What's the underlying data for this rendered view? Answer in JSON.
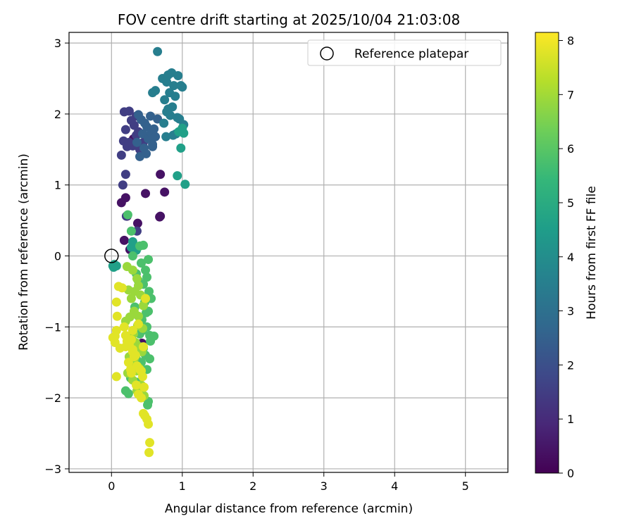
{
  "chart_data": {
    "type": "scatter",
    "title": "FOV centre drift starting at 2025/10/04 21:03:08",
    "xlabel": "Angular distance from reference (arcmin)",
    "ylabel": "Rotation from reference (arcmin)",
    "xlim": [
      -0.6,
      5.6
    ],
    "ylim": [
      -3.05,
      3.15
    ],
    "xticks": [
      0,
      1,
      2,
      3,
      4,
      5
    ],
    "yticks": [
      -3,
      -2,
      -1,
      0,
      1,
      2,
      3
    ],
    "grid": true,
    "legend": {
      "position": "top-right",
      "entries": [
        "Reference platepar"
      ]
    },
    "reference_point": {
      "label": "Reference platepar",
      "x": 0,
      "y": 0
    },
    "colorbar": {
      "label": "Hours from first FF file",
      "min": 0,
      "max": 8.15,
      "ticks": [
        0,
        1,
        2,
        3,
        4,
        5,
        6,
        7,
        8
      ],
      "colormap": "viridis",
      "stops": [
        "#440154",
        "#482878",
        "#3e4989",
        "#31688e",
        "#26828e",
        "#1f9e89",
        "#35b779",
        "#6ece58",
        "#b5de2b",
        "#fde725"
      ]
    },
    "series": [
      {
        "hour_range": [
          0,
          0.8
        ],
        "color_value": 0.4,
        "x": [
          0.31,
          0.69,
          0.69,
          0.75,
          0.68,
          0.22,
          0.26,
          0.18,
          0.37,
          0.2,
          0.14,
          0.3,
          0.43,
          0.48
        ],
        "y": [
          1.65,
          1.15,
          0.56,
          0.9,
          0.55,
          0.56,
          0.09,
          0.22,
          0.46,
          0.82,
          0.75,
          1.6,
          -1.23,
          0.88
        ]
      },
      {
        "hour_range": [
          0.8,
          2.0
        ],
        "color_value": 1.5,
        "x": [
          0.18,
          0.25,
          0.35,
          0.28,
          0.32,
          0.2,
          0.17,
          0.14,
          0.22,
          0.16,
          0.4,
          0.45,
          0.52,
          0.3,
          0.35,
          0.38,
          0.42,
          0.25,
          0.2,
          0.21,
          0.36
        ],
        "y": [
          2.03,
          2.04,
          1.97,
          1.91,
          1.84,
          1.78,
          1.62,
          1.42,
          1.54,
          1.0,
          1.5,
          1.6,
          1.68,
          1.55,
          1.7,
          1.75,
          1.45,
          1.6,
          1.15,
          0.56,
          0.35
        ]
      },
      {
        "hour_range": [
          2.0,
          3.0
        ],
        "color_value": 2.5,
        "x": [
          0.38,
          0.42,
          0.47,
          0.5,
          0.55,
          0.44,
          0.36,
          0.4,
          0.46,
          0.52,
          0.56,
          0.6,
          0.62,
          0.58,
          0.65,
          0.58,
          0.49
        ],
        "y": [
          1.99,
          1.92,
          1.87,
          1.82,
          1.97,
          1.72,
          1.6,
          1.4,
          1.52,
          1.65,
          1.74,
          1.79,
          1.68,
          1.57,
          1.93,
          1.54,
          1.44
        ]
      },
      {
        "hour_range": [
          3.0,
          4.0
        ],
        "color_value": 3.5,
        "x": [
          0.65,
          0.72,
          0.8,
          0.85,
          0.88,
          0.94,
          0.78,
          0.82,
          0.75,
          0.86,
          0.9,
          0.98,
          1.0,
          0.62,
          0.58,
          0.78,
          0.83,
          0.74,
          0.91,
          0.96,
          1.02,
          0.77,
          0.87,
          0.93,
          0.8
        ],
        "y": [
          2.88,
          2.5,
          2.55,
          2.58,
          2.4,
          2.54,
          2.45,
          2.3,
          2.2,
          2.1,
          2.25,
          2.4,
          2.38,
          2.33,
          2.3,
          2.03,
          1.98,
          1.87,
          1.72,
          1.93,
          1.85,
          1.68,
          1.7,
          1.95,
          2.07
        ]
      },
      {
        "hour_range": [
          4.0,
          5.3
        ],
        "color_value": 4.6,
        "x": [
          0.02,
          0.04,
          0.07,
          0.03,
          0.05,
          0.98,
          1.02,
          1.04,
          0.95,
          1.0,
          0.93,
          0.28,
          0.3,
          0.35
        ],
        "y": [
          -0.14,
          -0.12,
          -0.14,
          -0.16,
          -0.13,
          1.52,
          1.73,
          1.01,
          1.75,
          1.8,
          1.13,
          0.12,
          0.2,
          0.08
        ]
      },
      {
        "hour_range": [
          5.3,
          6.3
        ],
        "color_value": 5.8,
        "x": [
          0.23,
          0.28,
          0.4,
          0.45,
          0.52,
          0.3,
          0.42,
          0.48,
          0.35,
          0.5,
          0.45,
          0.38,
          0.53,
          0.56,
          0.47,
          0.33,
          0.52,
          0.49,
          0.43,
          0.5,
          0.44,
          0.4,
          0.54,
          0.55,
          0.45,
          0.6,
          0.48,
          0.35,
          0.42,
          0.5,
          0.27,
          0.36,
          0.45,
          0.2,
          0.24,
          0.52,
          0.51,
          0.54
        ],
        "y": [
          0.58,
          0.35,
          0.14,
          0.15,
          -0.05,
          0.0,
          -0.1,
          -0.2,
          -0.25,
          -0.3,
          -0.4,
          -0.35,
          -0.5,
          -0.6,
          -0.65,
          -0.72,
          -0.78,
          -0.8,
          -0.9,
          -1.0,
          -1.05,
          -1.1,
          -1.12,
          -1.2,
          -1.3,
          -1.13,
          -1.4,
          -1.45,
          -1.5,
          -1.6,
          -1.72,
          -1.78,
          -1.85,
          -1.9,
          -1.94,
          -2.05,
          -2.1,
          -1.45
        ]
      },
      {
        "hour_range": [
          6.3,
          7.3
        ],
        "color_value": 6.9,
        "x": [
          0.22,
          0.3,
          0.36,
          0.38,
          0.33,
          0.41,
          0.24,
          0.28,
          0.45,
          0.32,
          0.26,
          0.2,
          0.37,
          0.44,
          0.31,
          0.27,
          0.34,
          0.4,
          0.43,
          0.25,
          0.29,
          0.39,
          0.35,
          0.23,
          0.3,
          0.42,
          0.36,
          0.46,
          0.38,
          0.32
        ],
        "y": [
          -0.15,
          -0.2,
          -0.32,
          -0.42,
          -0.5,
          -0.55,
          -0.48,
          -0.6,
          -0.7,
          -0.78,
          -0.86,
          -0.92,
          -0.98,
          -1.02,
          -1.1,
          -1.18,
          -1.22,
          -1.28,
          -1.35,
          -1.42,
          -1.5,
          -1.58,
          -1.62,
          -1.65,
          -1.75,
          -1.82,
          -1.9,
          -1.97,
          -0.85,
          -1.45
        ]
      },
      {
        "hour_range": [
          7.3,
          8.15
        ],
        "color_value": 7.8,
        "x": [
          0.02,
          0.05,
          0.07,
          0.08,
          0.12,
          0.15,
          0.1,
          0.07,
          0.05,
          0.2,
          0.26,
          0.28,
          0.3,
          0.32,
          0.36,
          0.4,
          0.44,
          0.46,
          0.24,
          0.28,
          0.3,
          0.38,
          0.42,
          0.45,
          0.47,
          0.5,
          0.52,
          0.54,
          0.53,
          0.07,
          0.45,
          0.25,
          0.2,
          0.34,
          0.3,
          0.42,
          0.48,
          0.38,
          0.35,
          0.27,
          0.22,
          0.18
        ],
        "y": [
          -1.15,
          -1.22,
          -1.05,
          -0.85,
          -1.3,
          -0.45,
          -0.43,
          -0.65,
          -1.13,
          -1.12,
          -1.2,
          -1.18,
          -1.32,
          -1.42,
          -1.55,
          -1.6,
          -1.7,
          -1.85,
          -1.5,
          -1.65,
          -1.35,
          -1.95,
          -2.0,
          -2.22,
          -2.25,
          -2.3,
          -2.37,
          -2.63,
          -2.77,
          -1.7,
          -1.28,
          -1.25,
          -1.28,
          -1.4,
          -1.05,
          -1.62,
          -0.6,
          -0.96,
          -1.82,
          -1.6,
          -1.2,
          -1.0
        ]
      }
    ]
  }
}
